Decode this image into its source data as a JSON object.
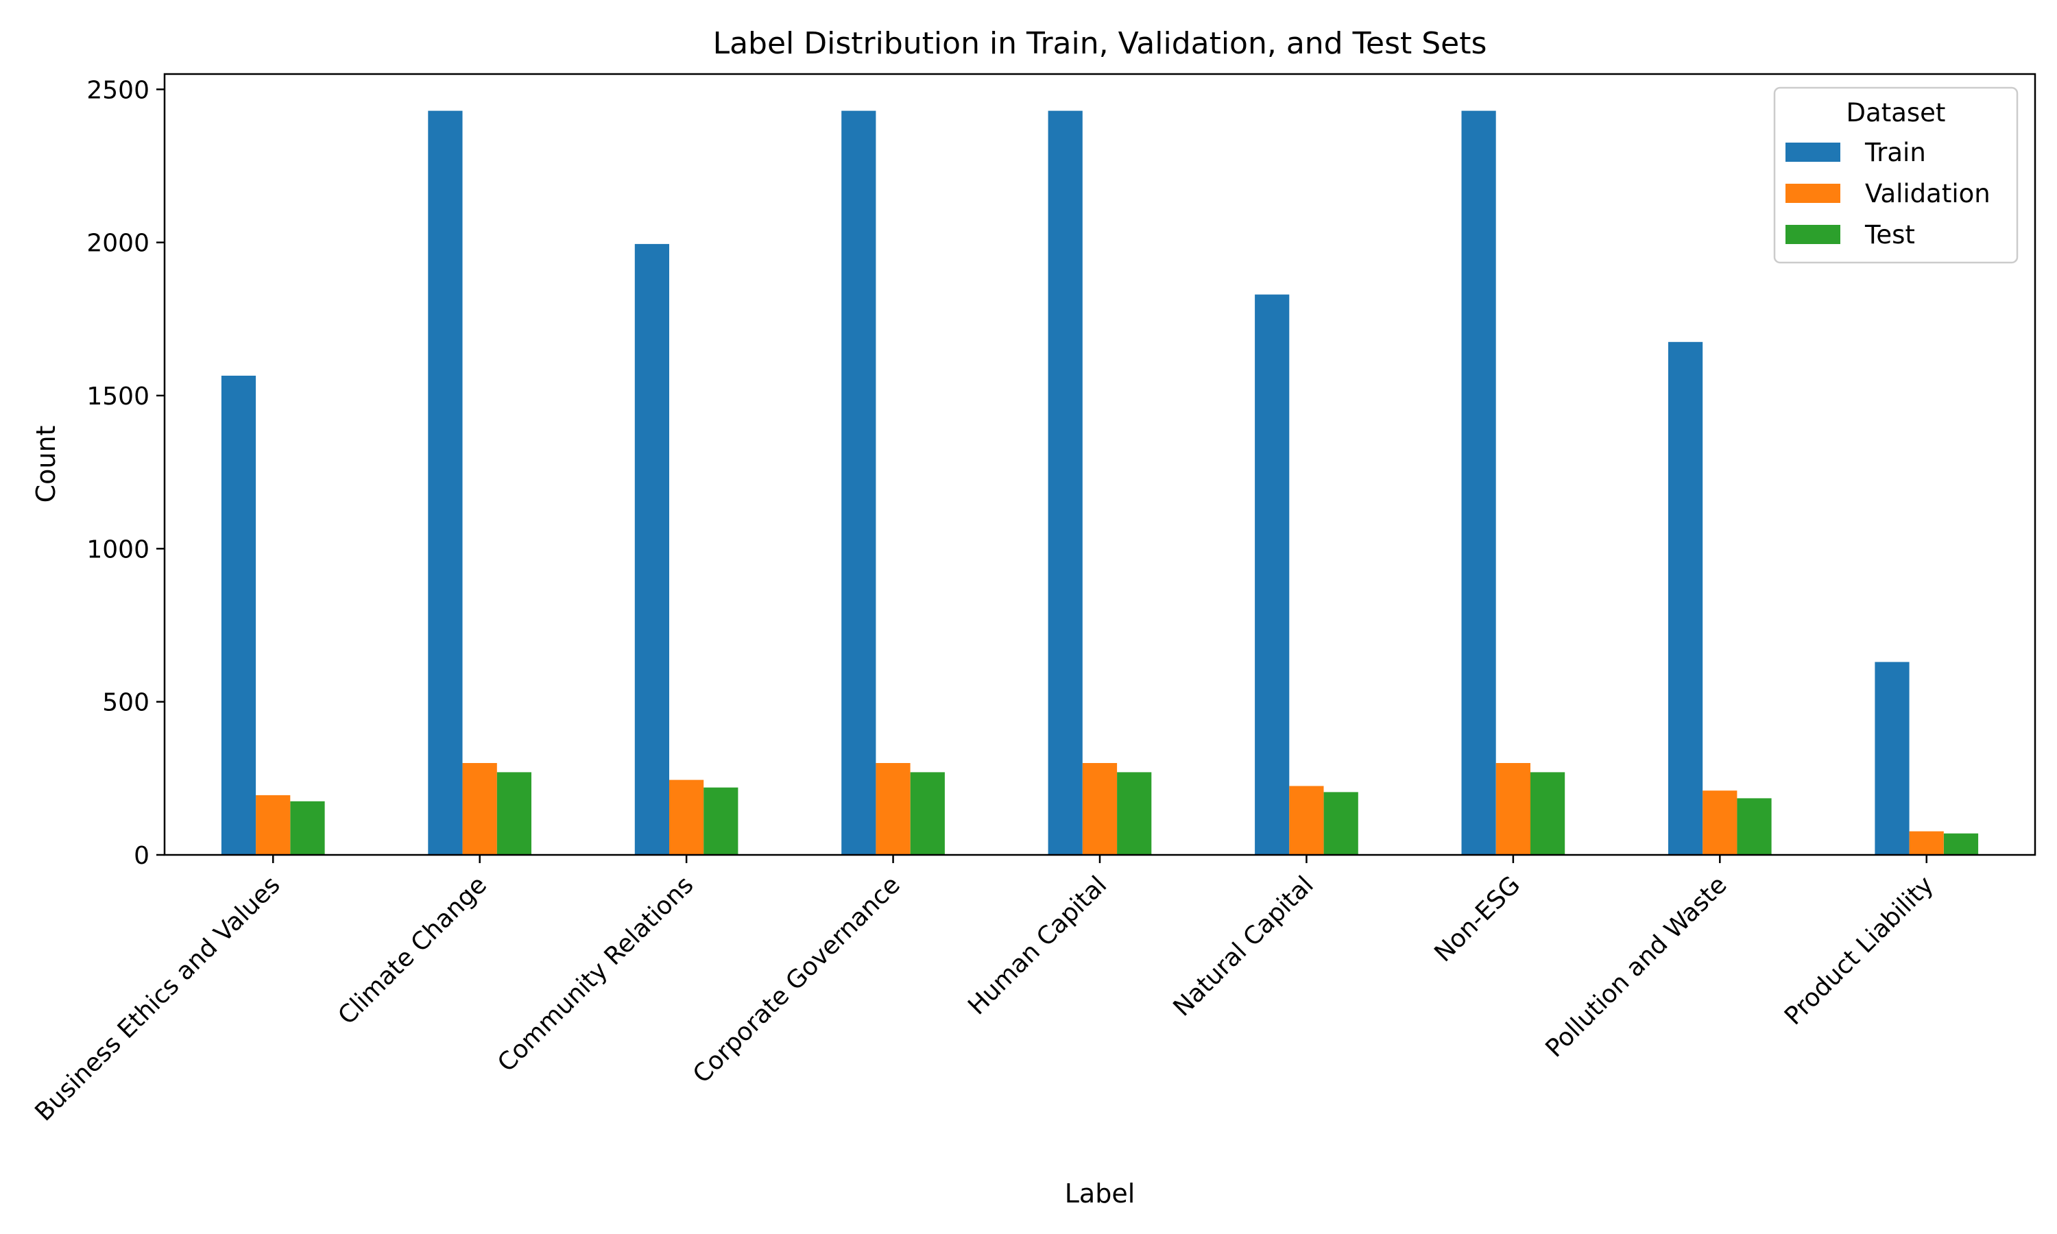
{
  "chart_data": {
    "type": "bar",
    "title": "Label Distribution in Train, Validation, and Test Sets",
    "xlabel": "Label",
    "ylabel": "Count",
    "ylim": [
      0,
      2550
    ],
    "yticks": [
      0,
      500,
      1000,
      1500,
      2000,
      2500
    ],
    "grid": false,
    "categories": [
      "Business Ethics and Values",
      "Climate Change",
      "Community Relations",
      "Corporate Governance",
      "Human Capital",
      "Natural Capital",
      "Non-ESG",
      "Pollution and Waste",
      "Product Liability"
    ],
    "series": [
      {
        "name": "Train",
        "color": "#1f77b4",
        "values": [
          1565,
          2430,
          1995,
          2430,
          2430,
          1830,
          2430,
          1675,
          630
        ]
      },
      {
        "name": "Validation",
        "color": "#ff7f0e",
        "values": [
          195,
          300,
          245,
          300,
          300,
          225,
          300,
          210,
          77
        ]
      },
      {
        "name": "Test",
        "color": "#2ca02c",
        "values": [
          175,
          270,
          220,
          270,
          270,
          205,
          270,
          185,
          70
        ]
      }
    ],
    "legend": {
      "title": "Dataset",
      "placement": "upper-right"
    }
  }
}
